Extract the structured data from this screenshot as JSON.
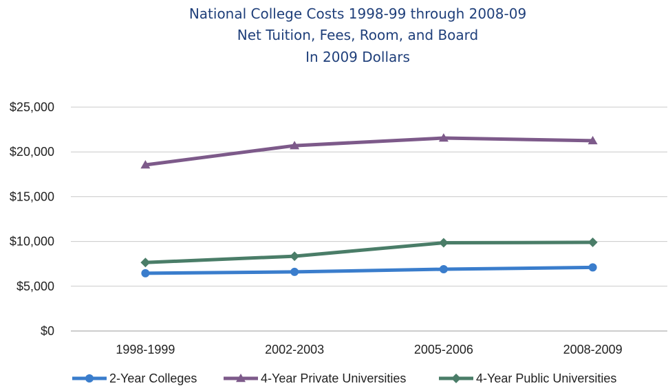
{
  "chart_data": {
    "type": "line",
    "title_lines": [
      "National College Costs 1998-99 through 2008-09",
      "Net Tuition, Fees, Room, and Board",
      "In 2009 Dollars"
    ],
    "categories": [
      "1998-1999",
      "2002-2003",
      "2005-2006",
      "2008-2009"
    ],
    "y_ticks": [
      0,
      5000,
      10000,
      15000,
      20000,
      25000
    ],
    "y_tick_labels": [
      "$0",
      "$5,000",
      "$10,000",
      "$15,000",
      "$20,000",
      "$25,000"
    ],
    "ylim": [
      0,
      25000
    ],
    "grid": true,
    "legend_position": "bottom",
    "series": [
      {
        "name": "2-Year Colleges",
        "values": [
          6450,
          6600,
          6900,
          7100
        ],
        "color": "#3a7dcc",
        "marker": "circle"
      },
      {
        "name": "4-Year Private Universities",
        "values": [
          18550,
          20700,
          21550,
          21250
        ],
        "color": "#7d5a8a",
        "marker": "triangle"
      },
      {
        "name": "4-Year Public Universities",
        "values": [
          7650,
          8350,
          9850,
          9900
        ],
        "color": "#4a7d68",
        "marker": "diamond"
      }
    ]
  }
}
